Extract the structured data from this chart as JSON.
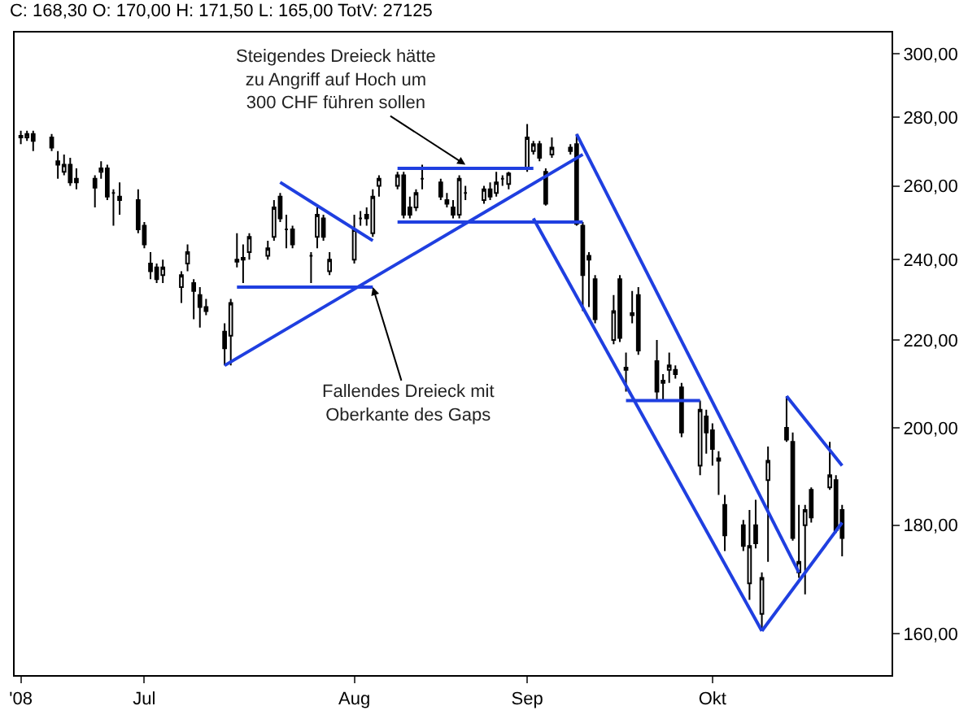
{
  "chart_data": {
    "type": "candlestick",
    "title": "C: 168,30 O: 170,00 H: 171,50 L: 165,00 TotV: 27125",
    "x": [
      "2008-06-11",
      "2008-06-12",
      "2008-06-13",
      "2008-06-16",
      "2008-06-17",
      "2008-06-18",
      "2008-06-19",
      "2008-06-20",
      "2008-06-23",
      "2008-06-24",
      "2008-06-25",
      "2008-06-26",
      "2008-06-27",
      "2008-06-30",
      "2008-07-01",
      "2008-07-02",
      "2008-07-03",
      "2008-07-04",
      "2008-07-07",
      "2008-07-08",
      "2008-07-09",
      "2008-07-10",
      "2008-07-11",
      "2008-07-14",
      "2008-07-15",
      "2008-07-16",
      "2008-07-17",
      "2008-07-18",
      "2008-07-21",
      "2008-07-22",
      "2008-07-23",
      "2008-07-24",
      "2008-07-25",
      "2008-07-28",
      "2008-07-29",
      "2008-07-30",
      "2008-07-31",
      "2008-08-04",
      "2008-08-05",
      "2008-08-06",
      "2008-08-07",
      "2008-08-08",
      "2008-08-11",
      "2008-08-12",
      "2008-08-13",
      "2008-08-14",
      "2008-08-15",
      "2008-08-18",
      "2008-08-19",
      "2008-08-20",
      "2008-08-21",
      "2008-08-22",
      "2008-08-25",
      "2008-08-26",
      "2008-08-27",
      "2008-08-28",
      "2008-08-29",
      "2008-09-01",
      "2008-09-02",
      "2008-09-03",
      "2008-09-04",
      "2008-09-05",
      "2008-09-08",
      "2008-09-09",
      "2008-09-10",
      "2008-09-11",
      "2008-09-12",
      "2008-09-15",
      "2008-09-16",
      "2008-09-17",
      "2008-09-18",
      "2008-09-19",
      "2008-09-22",
      "2008-09-23",
      "2008-09-24",
      "2008-09-25",
      "2008-09-26",
      "2008-09-29",
      "2008-09-30",
      "2008-10-01",
      "2008-10-02",
      "2008-10-03",
      "2008-10-06",
      "2008-10-07",
      "2008-10-08",
      "2008-10-09",
      "2008-10-10",
      "2008-10-13",
      "2008-10-14",
      "2008-10-15",
      "2008-10-16",
      "2008-10-17",
      "2008-10-20",
      "2008-10-21",
      "2008-10-22"
    ],
    "ohlc": [
      [
        274,
        276,
        272,
        274.5
      ],
      [
        274,
        276,
        273,
        275
      ],
      [
        275,
        276,
        270,
        273
      ],
      [
        274,
        275,
        270,
        271
      ],
      [
        267,
        270,
        262,
        266
      ],
      [
        264,
        269,
        263,
        266
      ],
      [
        266,
        268,
        260,
        261
      ],
      [
        262,
        265,
        259,
        261
      ],
      [
        262,
        263,
        254,
        259.5
      ],
      [
        264,
        267,
        262,
        265
      ],
      [
        265,
        266,
        256,
        257
      ],
      [
        258,
        259,
        249,
        258
      ],
      [
        257,
        261,
        252,
        256
      ],
      [
        256,
        259,
        247,
        248
      ],
      [
        249,
        250,
        243,
        244
      ],
      [
        239,
        242,
        235,
        237
      ],
      [
        238,
        239,
        234,
        235
      ],
      [
        236,
        240,
        234,
        238
      ],
      [
        233,
        237,
        229,
        236
      ],
      [
        239,
        244,
        237,
        242
      ],
      [
        234,
        235,
        225,
        232
      ],
      [
        231,
        233,
        223,
        228
      ],
      [
        228,
        230,
        226,
        227
      ],
      [
        222,
        224,
        214,
        218
      ],
      [
        221,
        230,
        214,
        229
      ],
      [
        239.5,
        247,
        238,
        240
      ],
      [
        240,
        244,
        234,
        240.5
      ],
      [
        242,
        247,
        240,
        246
      ],
      [
        241,
        245,
        240,
        243
      ],
      [
        246,
        256,
        245,
        254
      ],
      [
        257,
        258,
        250,
        251
      ],
      [
        248,
        252,
        243,
        248
      ],
      [
        248,
        249,
        243,
        244
      ],
      [
        241,
        242,
        234,
        241
      ],
      [
        246,
        254,
        243,
        252
      ],
      [
        251,
        252,
        245,
        246
      ],
      [
        237,
        242,
        236,
        240
      ],
      [
        240,
        252,
        239,
        248
      ],
      [
        251,
        253,
        249,
        251
      ],
      [
        252,
        254,
        249,
        251
      ],
      [
        247,
        259,
        246,
        257
      ],
      [
        260,
        263,
        257,
        262
      ],
      [
        260,
        264,
        259,
        263
      ],
      [
        263,
        264,
        251,
        252
      ],
      [
        254,
        257,
        251,
        252
      ],
      [
        254,
        259,
        253,
        258
      ],
      [
        262,
        266,
        259,
        262
      ],
      [
        261,
        262,
        256,
        257
      ],
      [
        256,
        258,
        254,
        255
      ],
      [
        254,
        256,
        251,
        252
      ],
      [
        252,
        263,
        251,
        262
      ],
      [
        258,
        260,
        256,
        258
      ],
      [
        256,
        260,
        255,
        259
      ],
      [
        259,
        261,
        256,
        257
      ],
      [
        258,
        264,
        257,
        261
      ],
      [
        262,
        263,
        260,
        262
      ],
      [
        260.5,
        264,
        259,
        263.5
      ],
      [
        265,
        278,
        264,
        274
      ],
      [
        270,
        273,
        269,
        272
      ],
      [
        272,
        273,
        267,
        268
      ],
      [
        264,
        265,
        254.5,
        255
      ],
      [
        269,
        274,
        268,
        271
      ],
      [
        271,
        272,
        269,
        270
      ],
      [
        272,
        275,
        249,
        249.5
      ],
      [
        249,
        250,
        227,
        236
      ],
      [
        241,
        242,
        228,
        240
      ],
      [
        235,
        236,
        224,
        225
      ],
      [
        220,
        231,
        219,
        227
      ],
      [
        235,
        236,
        219.5,
        220.5
      ],
      [
        213,
        217,
        208,
        213.5
      ],
      [
        226,
        232,
        224,
        226.5
      ],
      [
        231,
        233,
        216.5,
        217.5
      ],
      [
        215,
        220,
        206,
        208
      ],
      [
        210,
        212,
        206,
        210.5
      ],
      [
        213,
        217,
        210,
        214
      ],
      [
        213,
        214,
        211,
        212
      ],
      [
        209,
        210,
        198,
        199
      ],
      [
        192,
        206,
        190,
        204
      ],
      [
        202.5,
        204,
        194.5,
        199
      ],
      [
        199.5,
        201,
        192,
        195.5
      ],
      [
        193,
        195,
        186,
        193.5
      ],
      [
        184,
        186,
        175,
        178
      ],
      [
        180,
        181,
        175,
        176
      ],
      [
        169,
        183,
        166,
        176
      ],
      [
        180,
        185,
        175.5,
        176.5
      ],
      [
        163.5,
        171,
        161,
        170
      ],
      [
        189,
        196,
        173,
        193
      ],
      [
        200,
        207,
        197,
        197.5
      ],
      [
        197,
        199,
        177,
        177.5
      ],
      [
        171,
        184,
        170,
        173
      ],
      [
        180,
        184,
        167,
        183
      ],
      [
        187,
        187.5,
        180.5,
        181.5
      ],
      [
        187.5,
        197,
        187,
        190
      ],
      [
        189,
        190,
        178.5,
        179
      ],
      [
        183,
        184,
        174,
        177.5
      ]
    ],
    "series": [
      {
        "type": "line",
        "color": "#1f3fe0",
        "x": [
          "2008-07-14",
          "2008-09-10"
        ],
        "values": [
          214,
          269
        ]
      },
      {
        "type": "line",
        "color": "#1f3fe0",
        "x": [
          "2008-07-16",
          "2008-08-07"
        ],
        "values": [
          233,
          233
        ]
      },
      {
        "type": "line",
        "color": "#1f3fe0",
        "x": [
          "2008-07-23",
          "2008-08-07"
        ],
        "values": [
          261,
          245
        ]
      },
      {
        "type": "line",
        "color": "#1f3fe0",
        "x": [
          "2008-08-11",
          "2008-09-02"
        ],
        "values": [
          265,
          265
        ]
      },
      {
        "type": "line",
        "color": "#1f3fe0",
        "x": [
          "2008-08-11",
          "2008-09-10"
        ],
        "values": [
          250,
          250
        ]
      },
      {
        "type": "line",
        "color": "#1f3fe0",
        "x": [
          "2008-09-09",
          "2008-10-15"
        ],
        "values": [
          275,
          171
        ]
      },
      {
        "type": "line",
        "color": "#1f3fe0",
        "x": [
          "2008-09-02",
          "2008-10-09"
        ],
        "values": [
          251,
          160.5
        ]
      },
      {
        "type": "line",
        "color": "#1f3fe0",
        "x": [
          "2008-10-09",
          "2008-10-22"
        ],
        "values": [
          160.5,
          180.5
        ]
      },
      {
        "type": "line",
        "color": "#1f3fe0",
        "x": [
          "2008-10-13",
          "2008-10-22"
        ],
        "values": [
          207,
          192
        ]
      },
      {
        "type": "line",
        "color": "#1f3fe0",
        "x": [
          "2008-09-17",
          "2008-09-29"
        ],
        "values": [
          206,
          206
        ]
      }
    ],
    "annotations": [
      {
        "text": "Steigendes Dreieck hätte\nzu Angriff auf Hoch um\n300 CHF führen sollen",
        "x": "2008-08-22",
        "y": 266
      },
      {
        "text": "Fallendes Dreieck mit\nOberkante des Gaps",
        "x": "2008-08-07",
        "y": 233
      }
    ],
    "xlim": [
      "2008-06-10",
      "2008-10-30"
    ],
    "xticks": [
      {
        "value": "2008-06-11",
        "label": "'08"
      },
      {
        "value": "2008-07-01",
        "label": "Jul"
      },
      {
        "value": "2008-08-04",
        "label": "Aug"
      },
      {
        "value": "2008-09-01",
        "label": "Sep"
      },
      {
        "value": "2008-10-01",
        "label": "Okt"
      }
    ],
    "log": true,
    "ylim": [
      153,
      307
    ],
    "yticks": [
      {
        "value": 160,
        "label": "160,00"
      },
      {
        "value": 180,
        "label": "180,00"
      },
      {
        "value": 200,
        "label": "200,00"
      },
      {
        "value": 220,
        "label": "220,00"
      },
      {
        "value": 240,
        "label": "240,00"
      },
      {
        "value": 260,
        "label": "260,00"
      },
      {
        "value": 280,
        "label": "280,00"
      },
      {
        "value": 300,
        "label": "300,00"
      }
    ]
  }
}
